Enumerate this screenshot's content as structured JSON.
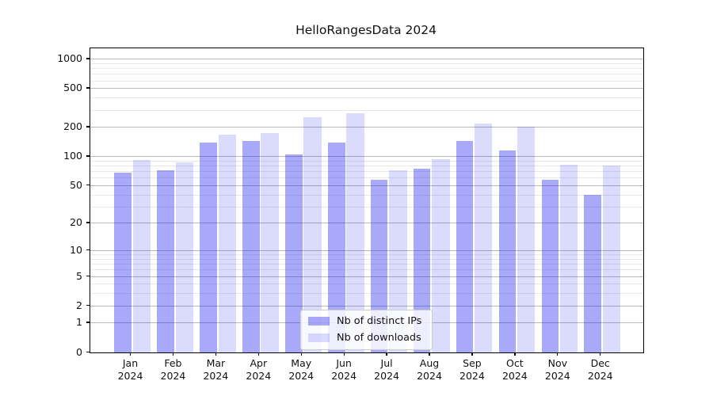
{
  "figure": {
    "title": "HelloRangesData 2024",
    "background": "#ffffff"
  },
  "chart_data": {
    "type": "bar",
    "title": "HelloRangesData 2024",
    "categories": [
      "Jan",
      "Feb",
      "Mar",
      "Apr",
      "May",
      "Jun",
      "Jul",
      "Aug",
      "Sep",
      "Oct",
      "Nov",
      "Dec"
    ],
    "x_tick_second_line": "2024",
    "series": [
      {
        "name": "Nb of distinct IPs",
        "color": "rgba(30,30,240,0.38)",
        "values": [
          68,
          72,
          140,
          145,
          105,
          140,
          58,
          75,
          145,
          115,
          58,
          40
        ]
      },
      {
        "name": "Nb of downloads",
        "color": "rgba(30,30,240,0.16)",
        "values": [
          92,
          88,
          170,
          175,
          255,
          280,
          72,
          95,
          220,
          205,
          83,
          81
        ]
      }
    ],
    "xlabel": "",
    "ylabel": "",
    "yscale": "log10(1+v)",
    "y_major_ticks": [
      0,
      1,
      2,
      5,
      10,
      20,
      50,
      100,
      200,
      500,
      1000
    ],
    "y_minor_ticks": [
      3,
      4,
      6,
      7,
      8,
      9,
      30,
      40,
      60,
      70,
      80,
      90,
      300,
      400,
      600,
      700,
      800,
      900
    ],
    "ylim": [
      0,
      1250
    ],
    "grid": true,
    "legend_position": "lower center"
  },
  "colors": {
    "bar_distinct_ips": "rgba(30,30,240,0.38)",
    "bar_downloads": "rgba(30,30,240,0.16)",
    "grid_major": "#b9b9b9",
    "grid_minor": "#e8e8e8",
    "spine": "#000000",
    "text": "#111111",
    "legend_border": "#cccccc",
    "legend_background": "rgba(255,255,255,0.8)"
  }
}
